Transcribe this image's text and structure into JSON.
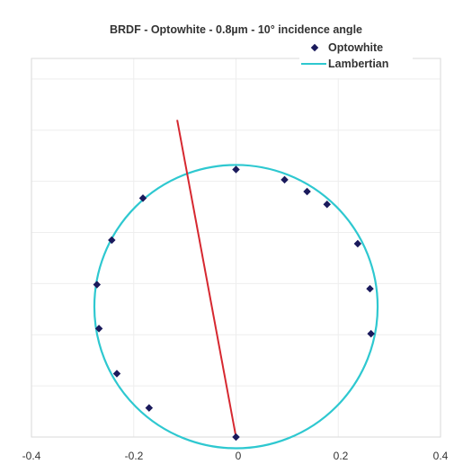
{
  "chart_data": {
    "type": "scatter",
    "title": "BRDF - Optowhite - 0.8µm - 10° incidence angle",
    "xlabel": "",
    "ylabel": "",
    "xlim": [
      -0.4,
      0.4
    ],
    "ylim": [
      0,
      0.52
    ],
    "x_ticks": [
      "-0.4",
      "-0.2",
      "0",
      "0.2",
      "0.4"
    ],
    "grid": true,
    "legend_position": "top-right",
    "legend": [
      "Optowhite",
      "Lambertian"
    ],
    "series": [
      {
        "name": "Optowhite",
        "kind": "markers",
        "color": "#1a1a5c",
        "points": [
          {
            "x": 0.0,
            "y": 0.523
          },
          {
            "x": 0.095,
            "y": 0.503
          },
          {
            "x": 0.139,
            "y": 0.48
          },
          {
            "x": 0.178,
            "y": 0.455
          },
          {
            "x": 0.238,
            "y": 0.378
          },
          {
            "x": 0.262,
            "y": 0.29
          },
          {
            "x": 0.264,
            "y": 0.202
          },
          {
            "x": -0.182,
            "y": 0.467
          },
          {
            "x": -0.243,
            "y": 0.385
          },
          {
            "x": -0.272,
            "y": 0.298
          },
          {
            "x": -0.268,
            "y": 0.212
          },
          {
            "x": -0.233,
            "y": 0.124
          },
          {
            "x": -0.17,
            "y": 0.057
          },
          {
            "x": 0.0,
            "y": 0.0
          }
        ]
      },
      {
        "name": "Lambertian",
        "kind": "circle",
        "color": "#2ec8d0",
        "center": {
          "x": 0.0,
          "y": 0.255
        },
        "radius": 0.277
      },
      {
        "name": "",
        "kind": "line",
        "color": "#d62830",
        "points": [
          {
            "x": -0.115,
            "y": 0.62
          },
          {
            "x": 0.0,
            "y": 0.0
          }
        ]
      }
    ]
  }
}
